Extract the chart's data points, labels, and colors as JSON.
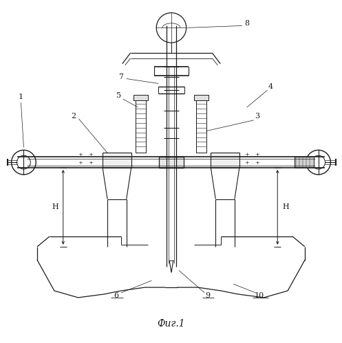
{
  "title": "Фиг.1",
  "bg_color": "#ffffff",
  "line_color": "#1a1a1a",
  "figsize": [
    4.97,
    4.99
  ],
  "dpi": 100
}
